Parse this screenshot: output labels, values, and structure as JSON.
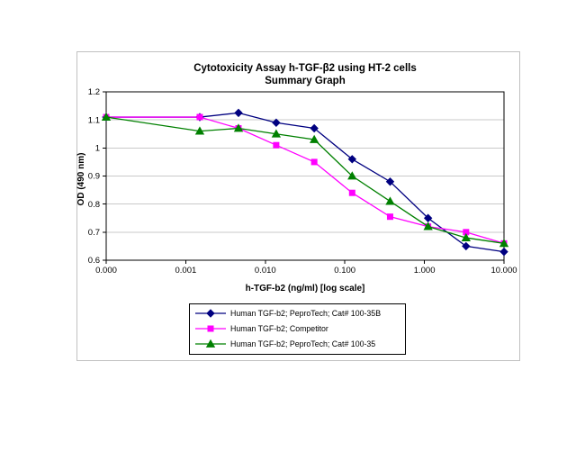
{
  "chart_data": {
    "type": "line",
    "title": "Cytotoxicity Assay h-TGF-β2 using HT-2 cells",
    "subtitle": "Summary Graph",
    "xlabel": "h-TGF-b2 (ng/ml) [log scale]",
    "ylabel": "OD (490 nm)",
    "x_scale": "log",
    "grid": "horizontal-gridlines",
    "legend_position": "bottom-center",
    "xlim": [
      0.0001,
      10
    ],
    "ylim": [
      0.6,
      1.2
    ],
    "x_tick_values": [
      0.0001,
      0.001,
      0.01,
      0.1,
      1,
      10
    ],
    "x_tick_labels": [
      "0.000",
      "0.001",
      "0.010",
      "0.100",
      "1.000",
      "10.000"
    ],
    "y_ticks": [
      0.6,
      0.7,
      0.8,
      0.9,
      1.0,
      1.1,
      1.2
    ],
    "y_tick_labels": [
      "0.6",
      "0.7",
      "0.8",
      "0.9",
      "1",
      "1.1",
      "1.2"
    ],
    "x": [
      0.0001,
      0.0015,
      0.0046,
      0.0137,
      0.0412,
      0.1235,
      0.3704,
      1.111,
      3.333,
      10
    ],
    "series": [
      {
        "name": "Human TGF-b2; PeproTech; Cat# 100-35B",
        "color": "#000080",
        "marker": "diamond",
        "values": [
          1.11,
          1.11,
          1.125,
          1.09,
          1.07,
          0.96,
          0.88,
          0.75,
          0.65,
          0.63
        ]
      },
      {
        "name": "Human TGF-b2; Competitor",
        "color": "#FF00FF",
        "marker": "square",
        "values": [
          1.11,
          1.11,
          1.07,
          1.01,
          0.95,
          0.84,
          0.755,
          0.72,
          0.7,
          0.66
        ]
      },
      {
        "name": "Human TGF-b2; PeproTech; Cat# 100-35",
        "color": "#008000",
        "marker": "triangle",
        "values": [
          1.11,
          1.06,
          1.07,
          1.05,
          1.03,
          0.9,
          0.81,
          0.72,
          0.68,
          0.66
        ]
      }
    ]
  }
}
